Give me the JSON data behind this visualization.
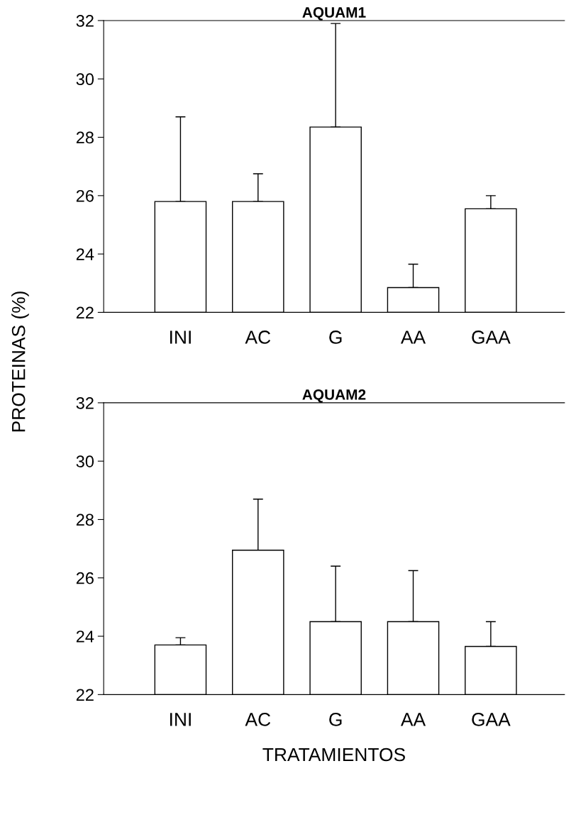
{
  "chart_data": [
    {
      "type": "bar",
      "title": "AQUAM1",
      "ylabel": "PROTEINAS (%)",
      "categories": [
        "INI",
        "AC",
        "G",
        "AA",
        "GAA"
      ],
      "series": [
        {
          "color": "#ffffff",
          "values": [
            25.8,
            25.8,
            28.35,
            22.85,
            25.55
          ],
          "errors": [
            [
              25.8,
              28.7
            ],
            [
              25.8,
              26.75
            ],
            [
              28.35,
              31.9
            ],
            [
              22.85,
              23.65
            ],
            [
              25.55,
              26.0
            ]
          ]
        }
      ],
      "ylim": [
        22,
        32
      ],
      "yticks": [
        22,
        24,
        26,
        28,
        30,
        32
      ],
      "grid": false,
      "legend": false
    },
    {
      "type": "bar",
      "title": "AQUAM2",
      "xlabel": "TRATAMIENTOS",
      "categories": [
        "INI",
        "AC",
        "G",
        "AA",
        "GAA"
      ],
      "series": [
        {
          "color": "#ffffff",
          "values": [
            23.7,
            26.95,
            24.5,
            24.5,
            23.65
          ],
          "errors": [
            [
              23.7,
              23.95
            ],
            [
              26.95,
              28.7
            ],
            [
              24.5,
              26.4
            ],
            [
              24.5,
              26.25
            ],
            [
              23.65,
              24.5
            ]
          ]
        }
      ],
      "ylim": [
        22,
        32
      ],
      "yticks": [
        22,
        24,
        26,
        28,
        30,
        32
      ],
      "grid": false,
      "legend": false
    }
  ]
}
